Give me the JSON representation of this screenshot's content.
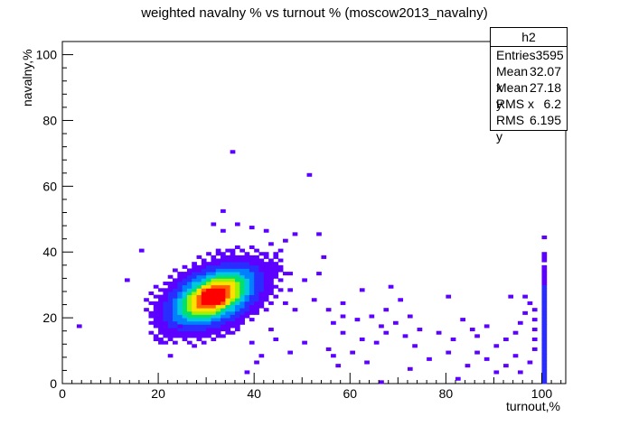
{
  "chart_data": {
    "type": "heatmap",
    "title": "weighted navalny % vs turnout % (moscow2013_navalny)",
    "xlabel": "turnout,%",
    "ylabel": "navalny,%",
    "xlim": [
      0,
      105
    ],
    "ylim": [
      0,
      104
    ],
    "x_ticks": [
      "0",
      "20",
      "40",
      "60",
      "80",
      "100"
    ],
    "y_ticks": [
      "0",
      "20",
      "40",
      "60",
      "80",
      "100"
    ],
    "colormap": [
      "#5c00ff",
      "#2a2dff",
      "#0080ff",
      "#00c8e0",
      "#00e070",
      "#a0f000",
      "#ffe000",
      "#ff6000",
      "#ff0000"
    ],
    "stats": {
      "name": "h2",
      "rows": [
        {
          "label": "Entries",
          "value": "3595"
        },
        {
          "label": "Mean x",
          "value": "32.07"
        },
        {
          "label": "Mean y",
          "value": "27.18"
        },
        {
          "label": "RMS x",
          "value": "6.2"
        },
        {
          "label": "RMS y",
          "value": "6.195"
        }
      ]
    },
    "core_cluster": {
      "center_x": 31,
      "center_y": 26,
      "spread_x": 4.5,
      "spread_y": 4.5
    },
    "outliers": [
      [
        3,
        17
      ],
      [
        16,
        40
      ],
      [
        13,
        31
      ],
      [
        17,
        25
      ],
      [
        17,
        22
      ],
      [
        18,
        20
      ],
      [
        35,
        70
      ],
      [
        51,
        63
      ],
      [
        33,
        52
      ],
      [
        31,
        48
      ],
      [
        33,
        46
      ],
      [
        36,
        48
      ],
      [
        39,
        47
      ],
      [
        42,
        46
      ],
      [
        46,
        43
      ],
      [
        43,
        42
      ],
      [
        45,
        40
      ],
      [
        53,
        45
      ],
      [
        54,
        38
      ],
      [
        50,
        31
      ],
      [
        47,
        28
      ],
      [
        46,
        24
      ],
      [
        48,
        22
      ],
      [
        52,
        25
      ],
      [
        55,
        22
      ],
      [
        58,
        24
      ],
      [
        62,
        28
      ],
      [
        61,
        19
      ],
      [
        64,
        20
      ],
      [
        67,
        22
      ],
      [
        66,
        17
      ],
      [
        69,
        18
      ],
      [
        72,
        20
      ],
      [
        74,
        16
      ],
      [
        78,
        15
      ],
      [
        81,
        13
      ],
      [
        83,
        19
      ],
      [
        85,
        16
      ],
      [
        86,
        14
      ],
      [
        88,
        17
      ],
      [
        70,
        25
      ],
      [
        58,
        15
      ],
      [
        62,
        13
      ],
      [
        55,
        10
      ],
      [
        60,
        9
      ],
      [
        65,
        12
      ],
      [
        73,
        11
      ],
      [
        76,
        7
      ],
      [
        80,
        9
      ],
      [
        84,
        5
      ],
      [
        86,
        9
      ],
      [
        88,
        7
      ],
      [
        90,
        11
      ],
      [
        92,
        13
      ],
      [
        94,
        15
      ],
      [
        95,
        18
      ],
      [
        96,
        21
      ],
      [
        97,
        24
      ],
      [
        96,
        26
      ],
      [
        93,
        26
      ],
      [
        90,
        3
      ],
      [
        92,
        5
      ],
      [
        94,
        8
      ],
      [
        95,
        3
      ],
      [
        97,
        6
      ],
      [
        98,
        10
      ],
      [
        98,
        13
      ],
      [
        98,
        16
      ],
      [
        98,
        19
      ],
      [
        98,
        22
      ],
      [
        50,
        12
      ],
      [
        47,
        9
      ],
      [
        44,
        13
      ],
      [
        41,
        8
      ],
      [
        39,
        12
      ],
      [
        40,
        6
      ],
      [
        43,
        16
      ],
      [
        38,
        3
      ],
      [
        28,
        13
      ],
      [
        27,
        11
      ],
      [
        25,
        14
      ],
      [
        24,
        17
      ],
      [
        22,
        8
      ],
      [
        47,
        33
      ],
      [
        53,
        33
      ],
      [
        58,
        20
      ],
      [
        68,
        29
      ],
      [
        80,
        26
      ],
      [
        57,
        5
      ],
      [
        72,
        4
      ],
      [
        56,
        18
      ],
      [
        44,
        34
      ],
      [
        42,
        39
      ],
      [
        48,
        45
      ],
      [
        56,
        8
      ],
      [
        66,
        0
      ],
      [
        82,
        1
      ],
      [
        67,
        15
      ],
      [
        71,
        14
      ],
      [
        63,
        6
      ]
    ],
    "column_x": 100,
    "column_y_range": [
      0,
      44
    ]
  }
}
